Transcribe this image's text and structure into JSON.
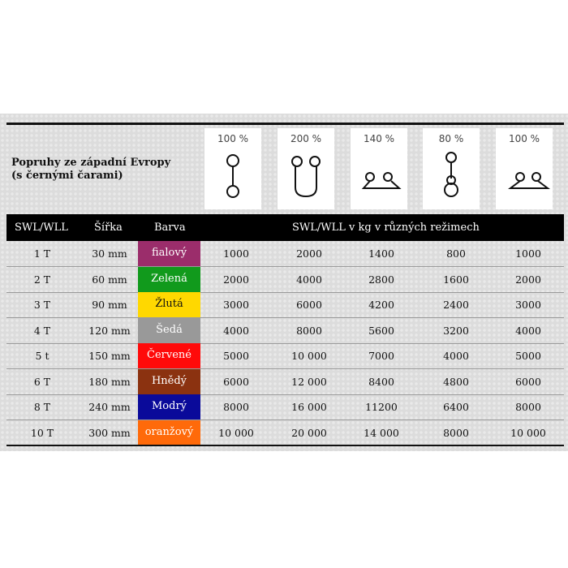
{
  "title_line1": "Popruhy ze západní Evropy",
  "title_line2": "(s černými čarami)",
  "modes": [
    {
      "percent": "100 %",
      "icon": "vertical-lift-icon"
    },
    {
      "percent": "200 %",
      "icon": "basket-lift-icon"
    },
    {
      "percent": "140 %",
      "icon": "basket-angle-lift-icon"
    },
    {
      "percent": "80 %",
      "icon": "choker-lift-icon"
    },
    {
      "percent": "100 %",
      "icon": "basket-wide-angle-lift-icon"
    }
  ],
  "headers": {
    "swl": "SWL/WLL",
    "width": "Šířka",
    "color": "Barva",
    "modes": "SWL/WLL v kg v různých režimech"
  },
  "rows": [
    {
      "swl": "1 T",
      "width": "30 mm",
      "color": "fialový",
      "bg": "#9b2d6b",
      "fg": "#ffffff",
      "values": [
        "1000",
        "2000",
        "1400",
        "800",
        "1000"
      ]
    },
    {
      "swl": "2 T",
      "width": "60 mm",
      "color": "Zelená",
      "bg": "#119a1c",
      "fg": "#ffffff",
      "values": [
        "2000",
        "4000",
        "2800",
        "1600",
        "2000"
      ]
    },
    {
      "swl": "3 T",
      "width": "90 mm",
      "color": "Žlutá",
      "bg": "#ffd800",
      "fg": "#111111",
      "values": [
        "3000",
        "6000",
        "4200",
        "2400",
        "3000"
      ]
    },
    {
      "swl": "4 T",
      "width": "120 mm",
      "color": "Šedá",
      "bg": "#999999",
      "fg": "#ffffff",
      "values": [
        "4000",
        "8000",
        "5600",
        "3200",
        "4000"
      ]
    },
    {
      "swl": "5 t",
      "width": "150 mm",
      "color": "Červené",
      "bg": "#ff0a0a",
      "fg": "#ffffff",
      "values": [
        "5000",
        "10 000",
        "7000",
        "4000",
        "5000"
      ]
    },
    {
      "swl": "6 T",
      "width": "180 mm",
      "color": "Hnědý",
      "bg": "#8b3210",
      "fg": "#ffffff",
      "values": [
        "6000",
        "12 000",
        "8400",
        "4800",
        "6000"
      ]
    },
    {
      "swl": "8 T",
      "width": "240 mm",
      "color": "Modrý",
      "bg": "#0a0a9a",
      "fg": "#ffffff",
      "values": [
        "8000",
        "16 000",
        "11200",
        "6400",
        "8000"
      ]
    },
    {
      "swl": "10 T",
      "width": "300 mm",
      "color": "oranžový",
      "bg": "#ff6a0a",
      "fg": "#ffffff",
      "values": [
        "10 000",
        "20 000",
        "14 000",
        "8000",
        "10 000"
      ]
    }
  ]
}
